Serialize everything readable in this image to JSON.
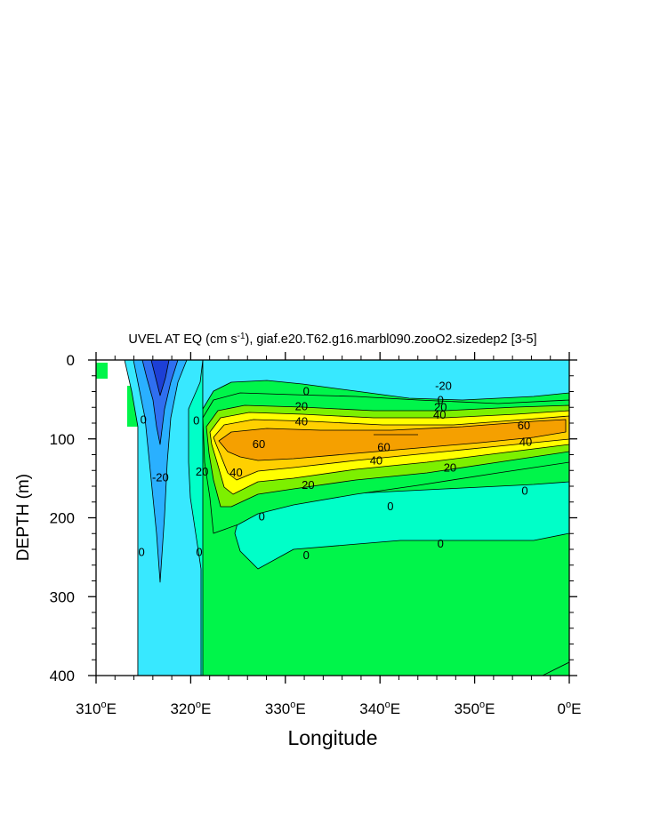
{
  "chart_data": {
    "type": "contour",
    "title": {
      "prefix": "UVEL AT EQ (cm s",
      "superscript": "-1",
      "suffix": "), giaf.e20.T62.g16.marbl090.zooO2.sizedep2 [3-5]"
    },
    "xlabel": "Longitude",
    "ylabel": "DEPTH (m)",
    "xlim": [
      310,
      360
    ],
    "ylim": [
      0,
      400
    ],
    "y_inverted": true,
    "x_ticks": [
      {
        "value": 310,
        "num": "310",
        "sup": "o",
        "suffix": "E"
      },
      {
        "value": 320,
        "num": "320",
        "sup": "o",
        "suffix": "E"
      },
      {
        "value": 330,
        "num": "330",
        "sup": "o",
        "suffix": "E"
      },
      {
        "value": 340,
        "num": "340",
        "sup": "o",
        "suffix": "E"
      },
      {
        "value": 350,
        "num": "350",
        "sup": "o",
        "suffix": "E"
      },
      {
        "value": 360,
        "num": "0",
        "sup": "o",
        "suffix": "E"
      }
    ],
    "y_ticks": [
      {
        "value": 0,
        "label": "0"
      },
      {
        "value": 100,
        "label": "100"
      },
      {
        "value": 200,
        "label": "200"
      },
      {
        "value": 300,
        "label": "300"
      },
      {
        "value": 400,
        "label": "400"
      }
    ],
    "contour_levels": [
      -60,
      -40,
      -20,
      0,
      20,
      40,
      60
    ],
    "fill_colors": {
      "lt_-60": "#1d3fd6",
      "-60_-40": "#2f6ff0",
      "-40_-20": "#2ab0ff",
      "-20_0": "#38e8ff",
      "0_20": "#00ffc8",
      "20_40": "#00f54a",
      "40_60": "#7df000",
      "60_80": "#ffff00",
      "80_100": "#ffd000",
      "gt_100": "#f5a000",
      "core": "#f59520"
    },
    "contour_labels": [
      {
        "text": "-20",
        "x": 346.7,
        "y": 32
      },
      {
        "text": "0",
        "x": 332.2,
        "y": 39
      },
      {
        "text": "0",
        "x": 346.4,
        "y": 50
      },
      {
        "text": "20",
        "x": 331.7,
        "y": 58
      },
      {
        "text": "20",
        "x": 346.4,
        "y": 59
      },
      {
        "text": "40",
        "x": 331.7,
        "y": 77
      },
      {
        "text": "40",
        "x": 346.3,
        "y": 69
      },
      {
        "text": "60",
        "x": 355.2,
        "y": 82
      },
      {
        "text": "60",
        "x": 327.2,
        "y": 106
      },
      {
        "text": "60",
        "x": 340.4,
        "y": 110
      },
      {
        "text": "40",
        "x": 355.4,
        "y": 103
      },
      {
        "text": "40",
        "x": 339.6,
        "y": 127
      },
      {
        "text": "20",
        "x": 347.4,
        "y": 136
      },
      {
        "text": "40",
        "x": 324.8,
        "y": 142
      },
      {
        "text": "20",
        "x": 321.2,
        "y": 141
      },
      {
        "text": "20",
        "x": 332.4,
        "y": 158
      },
      {
        "text": "0",
        "x": 355.3,
        "y": 165
      },
      {
        "text": "0",
        "x": 341.1,
        "y": 185
      },
      {
        "text": "0",
        "x": 315.0,
        "y": 75
      },
      {
        "text": "0",
        "x": 320.6,
        "y": 76
      },
      {
        "text": "-20",
        "x": 316.8,
        "y": 148
      },
      {
        "text": "0",
        "x": 327.5,
        "y": 198
      },
      {
        "text": "0",
        "x": 314.8,
        "y": 243
      },
      {
        "text": "0",
        "x": 320.9,
        "y": 243
      },
      {
        "text": "0",
        "x": 332.2,
        "y": 247
      },
      {
        "text": "0",
        "x": 346.4,
        "y": 232
      }
    ]
  }
}
